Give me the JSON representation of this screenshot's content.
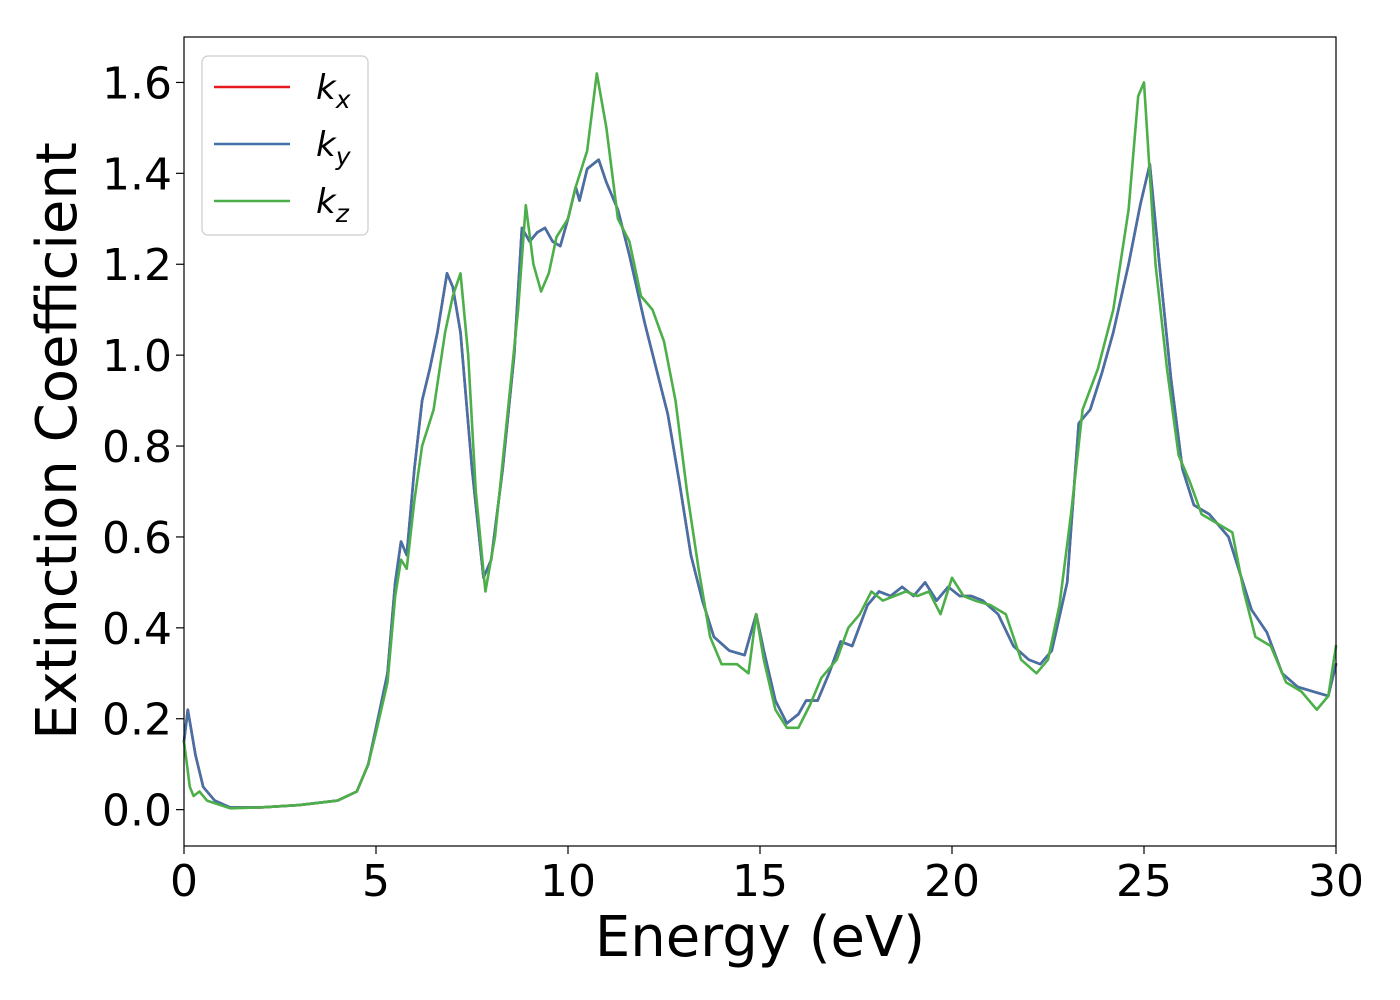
{
  "chart_data": {
    "type": "line",
    "xlabel": "Energy (eV)",
    "ylabel": "Extinction Coefficient",
    "xlim": [
      0,
      30
    ],
    "ylim": [
      -0.08,
      1.7
    ],
    "xticks": [
      0,
      5,
      10,
      15,
      20,
      25,
      30
    ],
    "yticks": [
      0.0,
      0.2,
      0.4,
      0.6,
      0.8,
      1.0,
      1.2,
      1.4,
      1.6
    ],
    "xtick_labels": [
      "0",
      "5",
      "10",
      "15",
      "20",
      "25",
      "30"
    ],
    "ytick_labels": [
      "0.0",
      "0.2",
      "0.4",
      "0.6",
      "0.8",
      "1.0",
      "1.2",
      "1.4",
      "1.6"
    ],
    "grid": false,
    "legend": "upper-left",
    "series": [
      {
        "name": "k_x",
        "base": "k",
        "sub": "x",
        "color": "#e41a1c",
        "points": [
          [
            0,
            0.15
          ],
          [
            0.1,
            0.22
          ],
          [
            0.3,
            0.12
          ],
          [
            0.5,
            0.05
          ],
          [
            0.8,
            0.02
          ],
          [
            1.2,
            0.005
          ],
          [
            2,
            0.005
          ],
          [
            3,
            0.01
          ],
          [
            4,
            0.02
          ],
          [
            4.5,
            0.04
          ],
          [
            4.8,
            0.1
          ],
          [
            5,
            0.18
          ],
          [
            5.3,
            0.3
          ],
          [
            5.5,
            0.5
          ],
          [
            5.65,
            0.59
          ],
          [
            5.8,
            0.56
          ],
          [
            6,
            0.75
          ],
          [
            6.2,
            0.9
          ],
          [
            6.4,
            0.97
          ],
          [
            6.6,
            1.05
          ],
          [
            6.85,
            1.18
          ],
          [
            7,
            1.15
          ],
          [
            7.2,
            1.05
          ],
          [
            7.5,
            0.75
          ],
          [
            7.8,
            0.51
          ],
          [
            8,
            0.55
          ],
          [
            8.3,
            0.75
          ],
          [
            8.6,
            1.0
          ],
          [
            8.8,
            1.28
          ],
          [
            9,
            1.25
          ],
          [
            9.2,
            1.27
          ],
          [
            9.4,
            1.28
          ],
          [
            9.6,
            1.25
          ],
          [
            9.8,
            1.24
          ],
          [
            10,
            1.3
          ],
          [
            10.2,
            1.37
          ],
          [
            10.3,
            1.34
          ],
          [
            10.5,
            1.41
          ],
          [
            10.8,
            1.43
          ],
          [
            11,
            1.38
          ],
          [
            11.3,
            1.32
          ],
          [
            11.6,
            1.22
          ],
          [
            12,
            1.07
          ],
          [
            12.3,
            0.97
          ],
          [
            12.6,
            0.87
          ],
          [
            12.9,
            0.72
          ],
          [
            13.2,
            0.56
          ],
          [
            13.5,
            0.46
          ],
          [
            13.8,
            0.38
          ],
          [
            14.2,
            0.35
          ],
          [
            14.6,
            0.34
          ],
          [
            14.9,
            0.43
          ],
          [
            15.1,
            0.35
          ],
          [
            15.4,
            0.24
          ],
          [
            15.7,
            0.19
          ],
          [
            16,
            0.21
          ],
          [
            16.2,
            0.24
          ],
          [
            16.5,
            0.24
          ],
          [
            16.8,
            0.3
          ],
          [
            17.1,
            0.37
          ],
          [
            17.4,
            0.36
          ],
          [
            17.8,
            0.45
          ],
          [
            18.1,
            0.48
          ],
          [
            18.4,
            0.47
          ],
          [
            18.7,
            0.49
          ],
          [
            19,
            0.47
          ],
          [
            19.3,
            0.5
          ],
          [
            19.6,
            0.46
          ],
          [
            19.9,
            0.49
          ],
          [
            20.2,
            0.47
          ],
          [
            20.5,
            0.47
          ],
          [
            20.8,
            0.46
          ],
          [
            21.2,
            0.43
          ],
          [
            21.6,
            0.36
          ],
          [
            22,
            0.33
          ],
          [
            22.3,
            0.32
          ],
          [
            22.6,
            0.35
          ],
          [
            23,
            0.5
          ],
          [
            23.3,
            0.85
          ],
          [
            23.6,
            0.88
          ],
          [
            23.9,
            0.96
          ],
          [
            24.2,
            1.05
          ],
          [
            24.6,
            1.2
          ],
          [
            24.9,
            1.33
          ],
          [
            25.15,
            1.42
          ],
          [
            25.4,
            1.2
          ],
          [
            25.7,
            0.95
          ],
          [
            26,
            0.75
          ],
          [
            26.3,
            0.67
          ],
          [
            26.7,
            0.65
          ],
          [
            27.2,
            0.6
          ],
          [
            27.5,
            0.52
          ],
          [
            27.8,
            0.44
          ],
          [
            28.2,
            0.39
          ],
          [
            28.6,
            0.3
          ],
          [
            29,
            0.27
          ],
          [
            29.4,
            0.26
          ],
          [
            29.8,
            0.25
          ],
          [
            30,
            0.32
          ]
        ]
      },
      {
        "name": "k_y",
        "base": "k",
        "sub": "y",
        "color": "#4472a8",
        "points": [
          [
            0,
            0.15
          ],
          [
            0.1,
            0.22
          ],
          [
            0.3,
            0.12
          ],
          [
            0.5,
            0.05
          ],
          [
            0.8,
            0.02
          ],
          [
            1.2,
            0.005
          ],
          [
            2,
            0.005
          ],
          [
            3,
            0.01
          ],
          [
            4,
            0.02
          ],
          [
            4.5,
            0.04
          ],
          [
            4.8,
            0.1
          ],
          [
            5,
            0.18
          ],
          [
            5.3,
            0.3
          ],
          [
            5.5,
            0.5
          ],
          [
            5.65,
            0.59
          ],
          [
            5.8,
            0.56
          ],
          [
            6,
            0.75
          ],
          [
            6.2,
            0.9
          ],
          [
            6.4,
            0.97
          ],
          [
            6.6,
            1.05
          ],
          [
            6.85,
            1.18
          ],
          [
            7,
            1.15
          ],
          [
            7.2,
            1.05
          ],
          [
            7.5,
            0.75
          ],
          [
            7.8,
            0.51
          ],
          [
            8,
            0.55
          ],
          [
            8.3,
            0.75
          ],
          [
            8.6,
            1.0
          ],
          [
            8.8,
            1.28
          ],
          [
            9,
            1.25
          ],
          [
            9.2,
            1.27
          ],
          [
            9.4,
            1.28
          ],
          [
            9.6,
            1.25
          ],
          [
            9.8,
            1.24
          ],
          [
            10,
            1.3
          ],
          [
            10.2,
            1.37
          ],
          [
            10.3,
            1.34
          ],
          [
            10.5,
            1.41
          ],
          [
            10.8,
            1.43
          ],
          [
            11,
            1.38
          ],
          [
            11.3,
            1.32
          ],
          [
            11.6,
            1.22
          ],
          [
            12,
            1.07
          ],
          [
            12.3,
            0.97
          ],
          [
            12.6,
            0.87
          ],
          [
            12.9,
            0.72
          ],
          [
            13.2,
            0.56
          ],
          [
            13.5,
            0.46
          ],
          [
            13.8,
            0.38
          ],
          [
            14.2,
            0.35
          ],
          [
            14.6,
            0.34
          ],
          [
            14.9,
            0.43
          ],
          [
            15.1,
            0.35
          ],
          [
            15.4,
            0.24
          ],
          [
            15.7,
            0.19
          ],
          [
            16,
            0.21
          ],
          [
            16.2,
            0.24
          ],
          [
            16.5,
            0.24
          ],
          [
            16.8,
            0.3
          ],
          [
            17.1,
            0.37
          ],
          [
            17.4,
            0.36
          ],
          [
            17.8,
            0.45
          ],
          [
            18.1,
            0.48
          ],
          [
            18.4,
            0.47
          ],
          [
            18.7,
            0.49
          ],
          [
            19,
            0.47
          ],
          [
            19.3,
            0.5
          ],
          [
            19.6,
            0.46
          ],
          [
            19.9,
            0.49
          ],
          [
            20.2,
            0.47
          ],
          [
            20.5,
            0.47
          ],
          [
            20.8,
            0.46
          ],
          [
            21.2,
            0.43
          ],
          [
            21.6,
            0.36
          ],
          [
            22,
            0.33
          ],
          [
            22.3,
            0.32
          ],
          [
            22.6,
            0.35
          ],
          [
            23,
            0.5
          ],
          [
            23.3,
            0.85
          ],
          [
            23.6,
            0.88
          ],
          [
            23.9,
            0.96
          ],
          [
            24.2,
            1.05
          ],
          [
            24.6,
            1.2
          ],
          [
            24.9,
            1.33
          ],
          [
            25.15,
            1.42
          ],
          [
            25.4,
            1.2
          ],
          [
            25.7,
            0.95
          ],
          [
            26,
            0.75
          ],
          [
            26.3,
            0.67
          ],
          [
            26.7,
            0.65
          ],
          [
            27.2,
            0.6
          ],
          [
            27.5,
            0.52
          ],
          [
            27.8,
            0.44
          ],
          [
            28.2,
            0.39
          ],
          [
            28.6,
            0.3
          ],
          [
            29,
            0.27
          ],
          [
            29.4,
            0.26
          ],
          [
            29.8,
            0.25
          ],
          [
            30,
            0.32
          ]
        ]
      },
      {
        "name": "k_z",
        "base": "k",
        "sub": "z",
        "color": "#4daf4a",
        "points": [
          [
            0,
            0.15
          ],
          [
            0.15,
            0.05
          ],
          [
            0.25,
            0.03
          ],
          [
            0.4,
            0.04
          ],
          [
            0.6,
            0.02
          ],
          [
            1.2,
            0.003
          ],
          [
            2,
            0.005
          ],
          [
            3,
            0.01
          ],
          [
            4,
            0.02
          ],
          [
            4.5,
            0.04
          ],
          [
            4.8,
            0.1
          ],
          [
            5,
            0.17
          ],
          [
            5.3,
            0.28
          ],
          [
            5.5,
            0.47
          ],
          [
            5.65,
            0.55
          ],
          [
            5.8,
            0.53
          ],
          [
            6,
            0.68
          ],
          [
            6.2,
            0.8
          ],
          [
            6.5,
            0.88
          ],
          [
            6.8,
            1.05
          ],
          [
            7,
            1.13
          ],
          [
            7.2,
            1.18
          ],
          [
            7.4,
            1.0
          ],
          [
            7.6,
            0.7
          ],
          [
            7.85,
            0.48
          ],
          [
            8.1,
            0.6
          ],
          [
            8.4,
            0.85
          ],
          [
            8.7,
            1.1
          ],
          [
            8.9,
            1.33
          ],
          [
            9.1,
            1.2
          ],
          [
            9.3,
            1.14
          ],
          [
            9.5,
            1.18
          ],
          [
            9.7,
            1.26
          ],
          [
            10,
            1.3
          ],
          [
            10.2,
            1.37
          ],
          [
            10.5,
            1.45
          ],
          [
            10.75,
            1.62
          ],
          [
            11,
            1.5
          ],
          [
            11.3,
            1.3
          ],
          [
            11.6,
            1.25
          ],
          [
            11.9,
            1.13
          ],
          [
            12.2,
            1.1
          ],
          [
            12.5,
            1.03
          ],
          [
            12.8,
            0.9
          ],
          [
            13.1,
            0.7
          ],
          [
            13.4,
            0.53
          ],
          [
            13.7,
            0.38
          ],
          [
            14,
            0.32
          ],
          [
            14.4,
            0.32
          ],
          [
            14.7,
            0.3
          ],
          [
            14.9,
            0.43
          ],
          [
            15.1,
            0.33
          ],
          [
            15.4,
            0.22
          ],
          [
            15.7,
            0.18
          ],
          [
            16,
            0.18
          ],
          [
            16.3,
            0.23
          ],
          [
            16.6,
            0.29
          ],
          [
            17,
            0.33
          ],
          [
            17.3,
            0.4
          ],
          [
            17.6,
            0.43
          ],
          [
            17.9,
            0.48
          ],
          [
            18.2,
            0.46
          ],
          [
            18.5,
            0.47
          ],
          [
            18.8,
            0.48
          ],
          [
            19.1,
            0.47
          ],
          [
            19.4,
            0.48
          ],
          [
            19.7,
            0.43
          ],
          [
            20,
            0.51
          ],
          [
            20.3,
            0.47
          ],
          [
            20.6,
            0.46
          ],
          [
            21,
            0.45
          ],
          [
            21.4,
            0.43
          ],
          [
            21.8,
            0.33
          ],
          [
            22.2,
            0.3
          ],
          [
            22.5,
            0.33
          ],
          [
            22.8,
            0.45
          ],
          [
            23.1,
            0.65
          ],
          [
            23.4,
            0.88
          ],
          [
            23.8,
            0.97
          ],
          [
            24.2,
            1.1
          ],
          [
            24.6,
            1.32
          ],
          [
            24.85,
            1.57
          ],
          [
            25.0,
            1.6
          ],
          [
            25.3,
            1.2
          ],
          [
            25.6,
            0.97
          ],
          [
            25.9,
            0.78
          ],
          [
            26.2,
            0.72
          ],
          [
            26.5,
            0.65
          ],
          [
            26.9,
            0.63
          ],
          [
            27.3,
            0.61
          ],
          [
            27.6,
            0.48
          ],
          [
            27.9,
            0.38
          ],
          [
            28.3,
            0.36
          ],
          [
            28.7,
            0.28
          ],
          [
            29.1,
            0.26
          ],
          [
            29.5,
            0.22
          ],
          [
            29.8,
            0.25
          ],
          [
            30,
            0.36
          ]
        ]
      }
    ]
  }
}
